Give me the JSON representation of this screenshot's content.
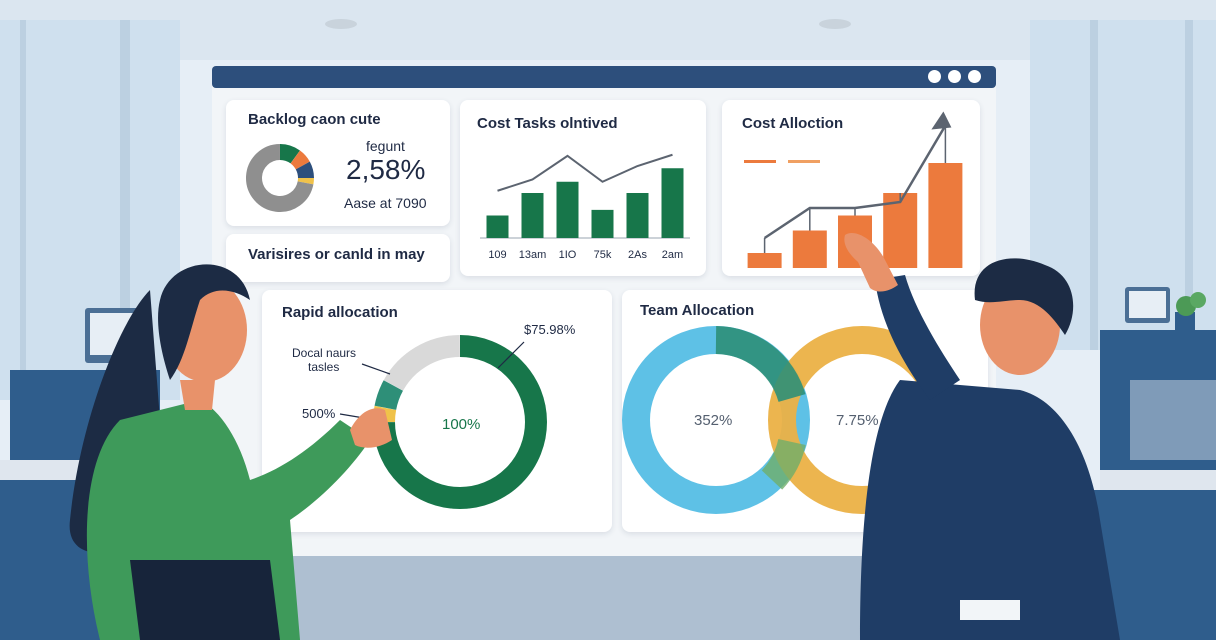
{
  "colors": {
    "window_bar": "#2d4f7c",
    "dark_green": "#17764a",
    "teal": "#2e8f78",
    "orange": "#ec7a3d",
    "blue": "#5ec1e6",
    "gold": "#ebb146",
    "dark_navy": "#1f2a44",
    "gray": "#d9d9d9"
  },
  "window": {
    "controls": [
      "circle",
      "circle",
      "circle"
    ]
  },
  "cards": {
    "backlog": {
      "title": "Backlog caon cute",
      "label": "fegunt",
      "value": "2,58%",
      "sub": "Aase at 7090",
      "slices": [
        {
          "color": "#17764a",
          "fraction": 0.1
        },
        {
          "color": "#ec7a3d",
          "fraction": 0.07
        },
        {
          "color": "#2d4f7c",
          "fraction": 0.08
        },
        {
          "color": "#f0c24a",
          "fraction": 0.03
        },
        {
          "color": "#8f8f8f",
          "fraction": 0.72
        }
      ]
    },
    "variance": {
      "title": "Varisires or canld in may"
    },
    "cost_tasks": {
      "title": "Cost Tasks olntived",
      "categories": [
        "109",
        "13am",
        "1IO",
        "75k",
        "2As",
        "2am"
      ],
      "bar_values": [
        20,
        40,
        50,
        25,
        40,
        62
      ],
      "line_values": [
        42,
        52,
        73,
        50,
        64,
        74
      ],
      "ylim": [
        0,
        80
      ]
    },
    "cost_allocation": {
      "title": "Cost Alloction",
      "legend": [
        "",
        ""
      ],
      "bar_values": [
        10,
        25,
        35,
        50,
        70
      ],
      "line_values": [
        20,
        40,
        40,
        44,
        95
      ],
      "ylim": [
        0,
        100
      ]
    },
    "rapid": {
      "title": "Rapid allocation",
      "center_label": "100%",
      "callout_top": "$75.98%",
      "callout_left_line1": "Docal naurs",
      "callout_left_line2": "tasles",
      "callout_bottom": "500%",
      "ring": [
        {
          "color": "#17764a",
          "fraction": 0.75
        },
        {
          "color": "#f0c24a",
          "fraction": 0.03
        },
        {
          "color": "#2e8f78",
          "fraction": 0.05
        },
        {
          "color": "#d9d9d9",
          "fraction": 0.17
        }
      ]
    },
    "team": {
      "title": "Team Allocation",
      "left_value": "352%",
      "right_value": "7.75%"
    }
  }
}
